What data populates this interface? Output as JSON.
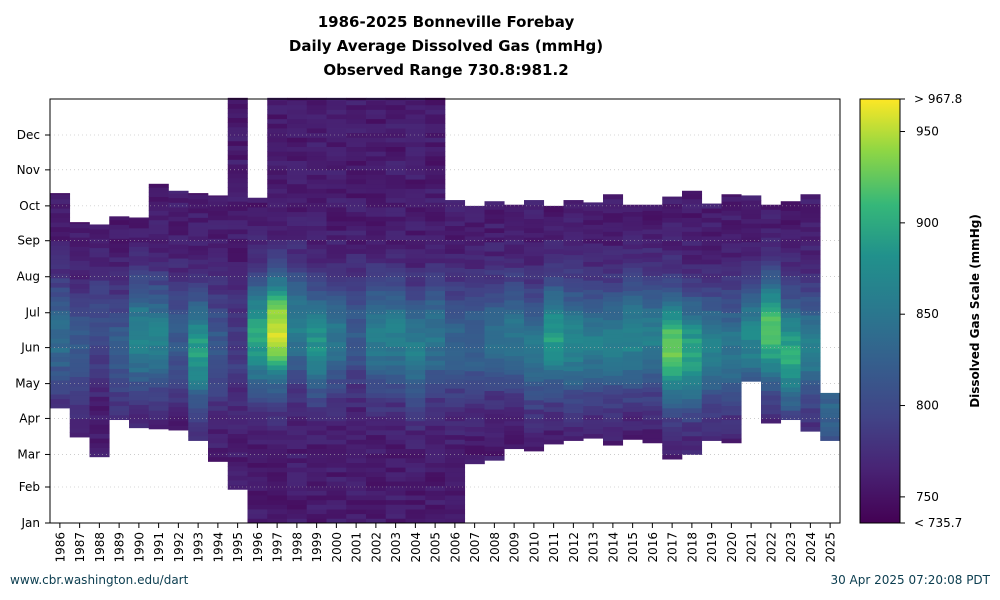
{
  "chart_data": {
    "type": "heatmap",
    "title": [
      "1986-2025 Bonneville Forebay",
      "Daily Average Dissolved Gas (mmHg)",
      "Observed Range 730.8:981.2"
    ],
    "xlabel": "",
    "ylabel": "",
    "x_categories": [
      "1986",
      "1987",
      "1988",
      "1989",
      "1990",
      "1991",
      "1992",
      "1993",
      "1994",
      "1995",
      "1996",
      "1997",
      "1998",
      "1999",
      "2000",
      "2001",
      "2002",
      "2003",
      "2004",
      "2005",
      "2006",
      "2007",
      "2008",
      "2009",
      "2010",
      "2011",
      "2012",
      "2013",
      "2014",
      "2015",
      "2016",
      "2017",
      "2018",
      "2019",
      "2020",
      "2021",
      "2022",
      "2023",
      "2024",
      "2025"
    ],
    "y_ticks": [
      "Jan",
      "Feb",
      "Mar",
      "Apr",
      "May",
      "Jun",
      "Jul",
      "Aug",
      "Sep",
      "Oct",
      "Nov",
      "Dec"
    ],
    "y_range_day_of_year": [
      1,
      366
    ],
    "grid": true,
    "coverage_day_of_year": [
      [
        100,
        284
      ],
      [
        75,
        259
      ],
      [
        58,
        257
      ],
      [
        90,
        264
      ],
      [
        83,
        263
      ],
      [
        82,
        292
      ],
      [
        81,
        286
      ],
      [
        72,
        284
      ],
      [
        54,
        282
      ],
      [
        30,
        366
      ],
      [
        1,
        280
      ],
      [
        1,
        366
      ],
      [
        1,
        366
      ],
      [
        1,
        366
      ],
      [
        1,
        366
      ],
      [
        1,
        366
      ],
      [
        1,
        366
      ],
      [
        1,
        366
      ],
      [
        1,
        366
      ],
      [
        1,
        366
      ],
      [
        1,
        278
      ],
      [
        52,
        273
      ],
      [
        55,
        277
      ],
      [
        65,
        274
      ],
      [
        63,
        278
      ],
      [
        69,
        273
      ],
      [
        72,
        278
      ],
      [
        74,
        276
      ],
      [
        68,
        283
      ],
      [
        73,
        274
      ],
      [
        70,
        274
      ],
      [
        56,
        281
      ],
      [
        60,
        286
      ],
      [
        72,
        275
      ],
      [
        70,
        283
      ],
      [
        123,
        282
      ],
      [
        87,
        274
      ],
      [
        90,
        277
      ],
      [
        80,
        283
      ],
      [
        72,
        112
      ]
    ],
    "peak_day_of_year": [
      160,
      150,
      170,
      150,
      160,
      160,
      160,
      148,
      150,
      150,
      160,
      165,
      170,
      155,
      160,
      165,
      160,
      160,
      150,
      160,
      155,
      155,
      160,
      160,
      150,
      160,
      155,
      155,
      155,
      160,
      160,
      150,
      145,
      150,
      150,
      160,
      165,
      145,
      150,
      100
    ],
    "peak_value_mmHg": [
      840,
      820,
      800,
      820,
      870,
      860,
      820,
      890,
      820,
      790,
      900,
      960,
      860,
      880,
      850,
      820,
      860,
      860,
      860,
      850,
      830,
      830,
      840,
      850,
      850,
      890,
      870,
      860,
      860,
      870,
      860,
      930,
      900,
      860,
      850,
      870,
      920,
      900,
      860,
      830
    ],
    "baseline_value_mmHg": 758,
    "colorbar": {
      "label": "Dissolved Gas Scale (mmHg)",
      "min": 735.7,
      "max": 967.8,
      "min_label": "< 735.7",
      "max_label": "> 967.8",
      "ticks": [
        750,
        800,
        850,
        900,
        950
      ],
      "colormap": "viridis"
    }
  },
  "footer": {
    "left": "www.cbr.washington.edu/dart",
    "right": "30 Apr 2025 07:20:08 PDT"
  }
}
